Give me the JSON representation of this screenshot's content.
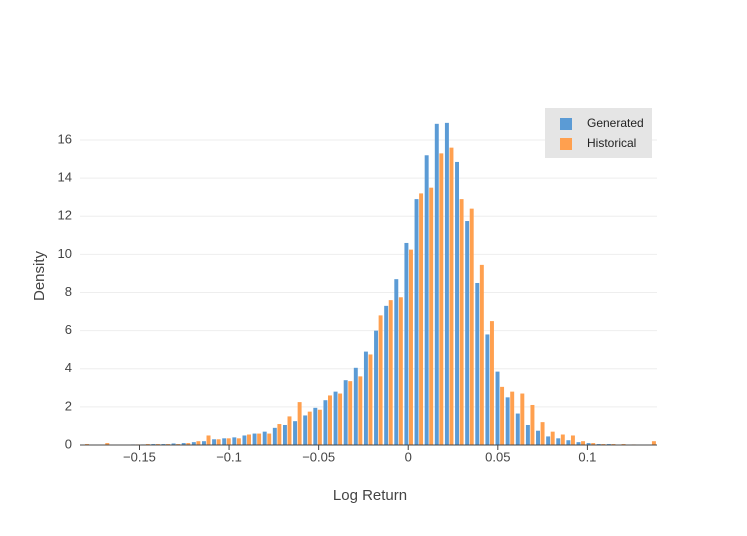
{
  "chart_data": {
    "type": "histogram",
    "xlabel": "Log Return",
    "ylabel": "Density",
    "bins": [
      -0.1832,
      -0.17755,
      -0.1719,
      -0.16625,
      -0.1606,
      -0.15495,
      -0.1493,
      -0.14365,
      -0.138,
      -0.13235,
      -0.1267,
      -0.12105,
      -0.1154,
      -0.10975,
      -0.1041,
      -0.09845,
      -0.0928,
      -0.08715,
      -0.0815,
      -0.07585,
      -0.0702,
      -0.06455,
      -0.0589,
      -0.05325,
      -0.0476,
      -0.04195,
      -0.0363,
      -0.03065,
      -0.025,
      -0.01935,
      -0.0137,
      -0.00805,
      -0.0024,
      0.00325,
      0.0089,
      0.01455,
      0.0202,
      0.02585,
      0.0315,
      0.03715,
      0.0428,
      0.04845,
      0.0541,
      0.05975,
      0.0654,
      0.07105,
      0.0767,
      0.08235,
      0.088,
      0.09365,
      0.0993,
      0.10495,
      0.1106,
      0.11625,
      0.1219,
      0.12755,
      0.1332,
      0.13885
    ],
    "series": [
      {
        "name": "Generated",
        "color": "#5b9bd5",
        "values": [
          0.02,
          0.01,
          0.02,
          0.02,
          0.02,
          0.03,
          0.03,
          0.05,
          0.05,
          0.08,
          0.1,
          0.15,
          0.2,
          0.3,
          0.35,
          0.4,
          0.5,
          0.6,
          0.7,
          0.9,
          1.05,
          1.25,
          1.55,
          1.95,
          2.35,
          2.8,
          3.4,
          4.05,
          4.9,
          6.0,
          7.3,
          8.7,
          10.6,
          12.9,
          15.2,
          16.85,
          16.9,
          14.85,
          11.75,
          8.5,
          5.8,
          3.85,
          2.5,
          1.65,
          1.05,
          0.75,
          0.45,
          0.35,
          0.25,
          0.15,
          0.1,
          0.05,
          0.05,
          0.02,
          0.02,
          0.02,
          0.02
        ]
      },
      {
        "name": "Historical",
        "color": "#ffa04f",
        "values": [
          0.05,
          0.02,
          0.1,
          0.02,
          0.02,
          0.03,
          0.05,
          0.05,
          0.05,
          0.05,
          0.1,
          0.2,
          0.5,
          0.3,
          0.35,
          0.35,
          0.55,
          0.6,
          0.6,
          1.1,
          1.5,
          2.25,
          1.75,
          1.85,
          2.6,
          2.7,
          3.35,
          3.6,
          4.75,
          6.8,
          7.6,
          7.75,
          10.25,
          13.2,
          13.5,
          15.3,
          15.6,
          12.9,
          12.4,
          9.45,
          6.5,
          3.05,
          2.8,
          2.7,
          2.1,
          1.2,
          0.7,
          0.55,
          0.5,
          0.2,
          0.1,
          0.05,
          0.05,
          0.05,
          0.03,
          0.02,
          0.2
        ]
      }
    ],
    "xlim": [
      -0.1832,
      0.13885
    ],
    "ylim": [
      0,
      17.68
    ],
    "xticks": [
      {
        "value": -0.15,
        "label": "−0.15"
      },
      {
        "value": -0.1,
        "label": "−0.1"
      },
      {
        "value": -0.05,
        "label": "−0.05"
      },
      0,
      0.05,
      0.1
    ],
    "yticks": [
      0,
      2,
      4,
      6,
      8,
      10,
      12,
      14,
      16
    ],
    "grid": true,
    "legend": "top-right"
  }
}
